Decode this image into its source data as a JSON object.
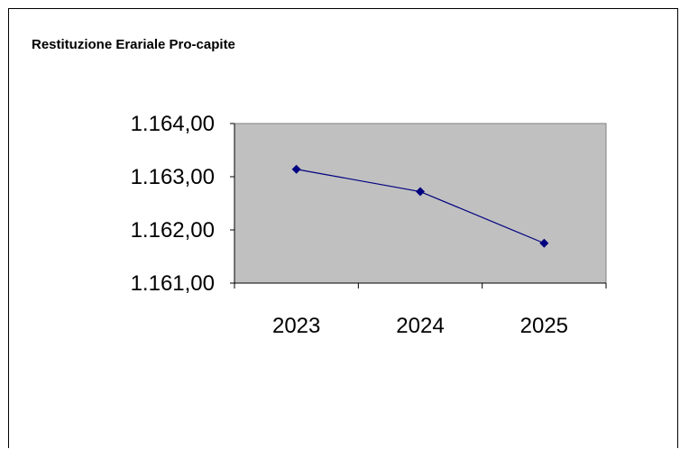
{
  "chart_data": {
    "type": "line",
    "title": "Restituzione Erariale Pro-capite",
    "categories": [
      "2023",
      "2024",
      "2025"
    ],
    "series": [
      {
        "values": [
          1163.14,
          1162.72,
          1161.75
        ]
      }
    ],
    "ylim": [
      1161,
      1164
    ],
    "yticks": [
      1161,
      1162,
      1163,
      1164
    ],
    "ytick_labels": [
      "1.161,00",
      "1.162,00",
      "1.163,00",
      "1.164,00"
    ],
    "grid": false,
    "legend": "none",
    "xlabel": "",
    "ylabel": ""
  },
  "colors": {
    "plot_background": "#c0c0c0",
    "series_line": "#000080",
    "series_marker": "#000080",
    "axis": "#000000"
  }
}
